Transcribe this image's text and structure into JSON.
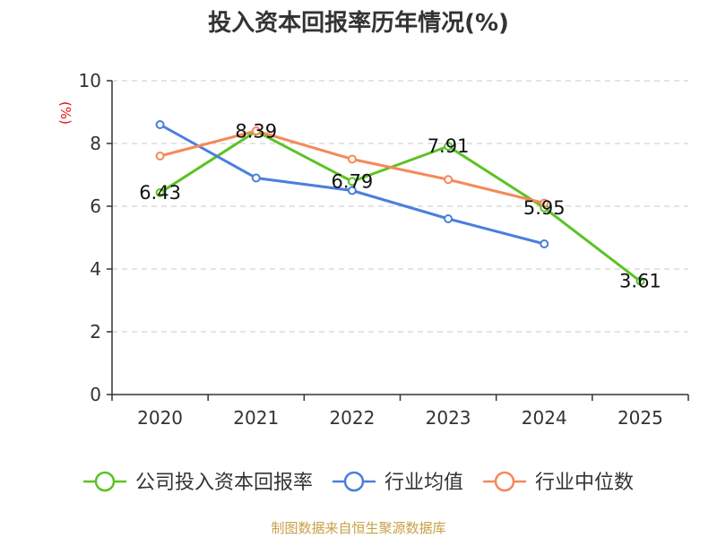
{
  "chart_data": {
    "type": "line",
    "title": "投入资本回报率历年情况(%)",
    "unit_label": "(%)",
    "categories": [
      "2020",
      "2021",
      "2022",
      "2023",
      "2024",
      "2025"
    ],
    "ylim": [
      0,
      10
    ],
    "yticks": [
      0,
      2,
      4,
      6,
      8,
      10
    ],
    "grid": true,
    "legend_position": "bottom",
    "series": [
      {
        "name": "公司投入资本回报率",
        "color": "#5cc323",
        "values": [
          6.43,
          8.39,
          6.79,
          7.91,
          5.95,
          3.61
        ],
        "labels": [
          "6.43",
          "8.39",
          "6.79",
          "7.91",
          "5.95",
          "3.61"
        ]
      },
      {
        "name": "行业均值",
        "color": "#4a7fdd",
        "values": [
          8.6,
          6.9,
          6.5,
          5.6,
          4.8,
          null
        ]
      },
      {
        "name": "行业中位数",
        "color": "#f5895a",
        "values": [
          7.6,
          8.4,
          7.5,
          6.85,
          6.1,
          null
        ]
      }
    ],
    "source": "制图数据来自恒生聚源数据库"
  }
}
